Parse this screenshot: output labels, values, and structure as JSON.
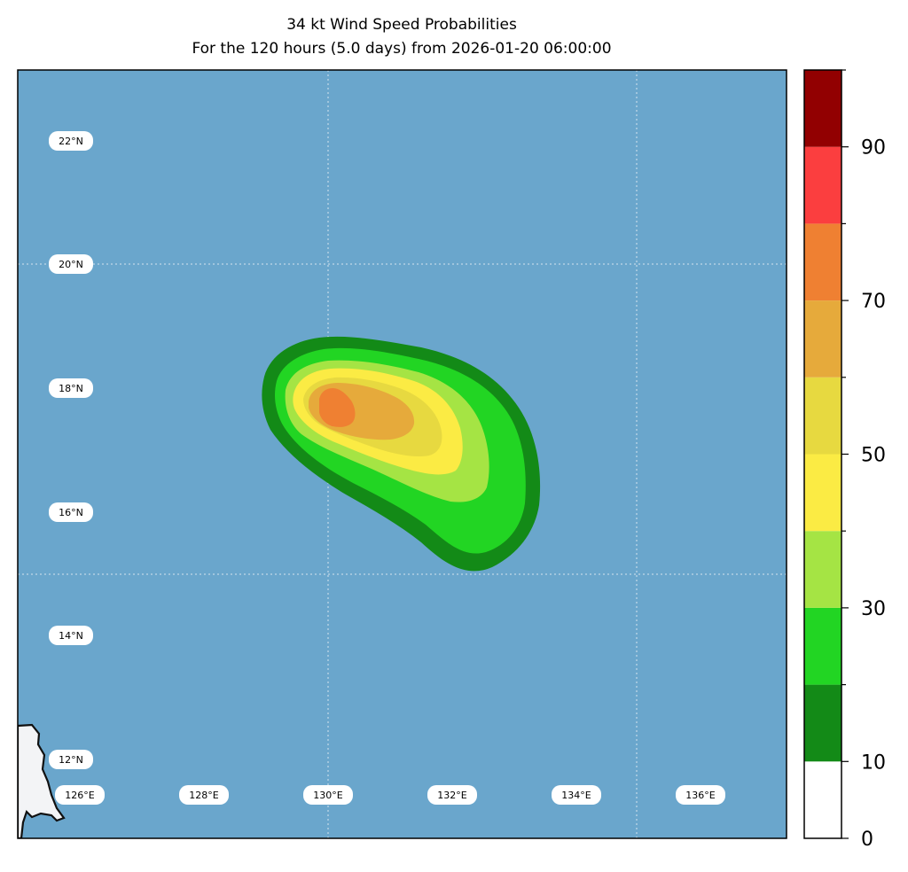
{
  "title": {
    "line1": "34 kt Wind Speed Probabilities",
    "line2": "For the 120 hours (5.0 days) from 2026-01-20 06:00:00"
  },
  "map": {
    "ocean_color": "#6aa6cc",
    "land_color": "#f3f4f6",
    "extent": {
      "lon_min": 125.0,
      "lon_max": 137.4,
      "lat_min": 11.0,
      "lat_max": 23.4
    },
    "lat_labels": [
      "22°N",
      "20°N",
      "18°N",
      "16°N",
      "14°N",
      "12°N"
    ],
    "lon_labels": [
      "126°E",
      "128°E",
      "130°E",
      "132°E",
      "134°E",
      "136°E"
    ]
  },
  "colorbar": {
    "levels": [
      0,
      10,
      20,
      30,
      40,
      50,
      60,
      70,
      80,
      90,
      100
    ],
    "colors": [
      "#ffffff",
      "#138a17",
      "#22d523",
      "#a5e444",
      "#fbeb44",
      "#e7d940",
      "#e6aa3b",
      "#ef8032",
      "#fb3e3f",
      "#920001",
      "#8126d8"
    ],
    "tick_labels": [
      "0",
      "10",
      "30",
      "50",
      "70",
      "90"
    ]
  }
}
